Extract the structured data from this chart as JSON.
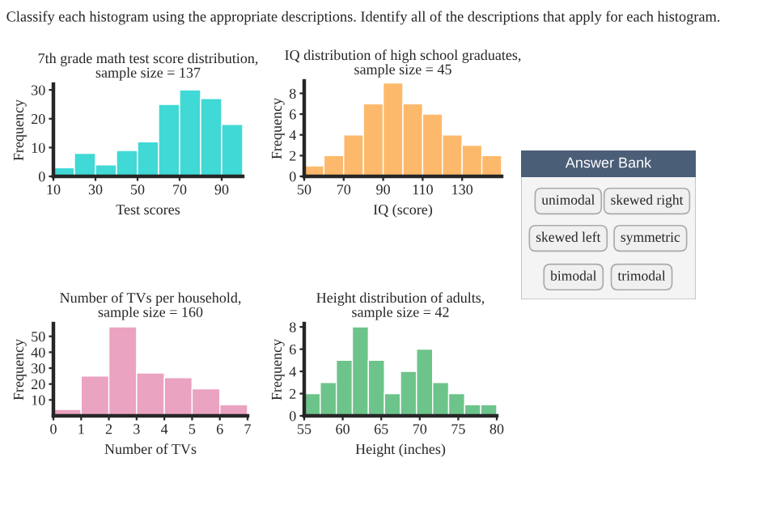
{
  "chart_data": [
    {
      "type": "other",
      "title": "Classify each histogram using the appropriate descriptions. Identify all of the descriptions that apply for each histogram."
    },
    {
      "type": "histogram",
      "title": "7th grade math test score distribution,\nsample size = 137",
      "xlabel": "Test scores",
      "ylabel": "Frequency",
      "color": "#40d9d5",
      "bins": [
        10,
        20,
        30,
        40,
        50,
        60,
        70,
        80,
        90,
        100
      ],
      "values": [
        3,
        8,
        4,
        9,
        12,
        25,
        30,
        27,
        18
      ],
      "xlim": [
        10,
        100
      ],
      "ylim": [
        0,
        32
      ],
      "xticks": [
        10,
        30,
        50,
        70,
        90
      ],
      "yticks": [
        0,
        10,
        20,
        30
      ]
    },
    {
      "type": "histogram",
      "title": "IQ distribution of high school graduates,\nsample size = 45",
      "xlabel": "IQ (score)",
      "ylabel": "Frequency",
      "color": "#fdb96b",
      "bins": [
        50,
        60,
        70,
        80,
        90,
        100,
        110,
        120,
        130,
        140,
        150
      ],
      "values": [
        1,
        2,
        4,
        7,
        9,
        7,
        6,
        4,
        3,
        2
      ],
      "xlim": [
        50,
        150
      ],
      "ylim": [
        0,
        9.2
      ],
      "xticks": [
        50,
        70,
        90,
        110,
        130
      ],
      "yticks": [
        0,
        2,
        4,
        6,
        8
      ]
    },
    {
      "type": "histogram",
      "title": "Number of TVs per household,\nsample size = 160",
      "xlabel": "Number of TVs",
      "ylabel": "Frequency",
      "color": "#eaa3c0",
      "bins": [
        0,
        1,
        2,
        3,
        4,
        5,
        6,
        7
      ],
      "values": [
        4,
        25,
        56,
        27,
        24,
        17,
        7
      ],
      "xlim": [
        0,
        7
      ],
      "ylim": [
        0,
        58
      ],
      "xticks": [
        0,
        1,
        2,
        3,
        4,
        5,
        6,
        7
      ],
      "yticks": [
        10,
        20,
        30,
        40,
        50
      ]
    },
    {
      "type": "histogram",
      "title": "Height distribution of adults,\nsample size = 42",
      "xlabel": "Height (inches)",
      "ylabel": "Frequency",
      "color": "#6dc48b",
      "bins": [
        55,
        57.08,
        59.17,
        61.25,
        63.33,
        65.42,
        67.5,
        69.58,
        71.67,
        73.75,
        75.83,
        77.92,
        80
      ],
      "values": [
        2,
        3,
        5,
        8,
        5,
        2,
        4,
        6,
        3,
        2,
        1,
        1
      ],
      "xlim": [
        55,
        80
      ],
      "ylim": [
        0,
        8.3
      ],
      "xticks": [
        55,
        60,
        65,
        70,
        75,
        80
      ],
      "yticks": [
        0,
        2,
        4,
        6,
        8
      ]
    },
    {
      "type": "other",
      "title": "Answer Bank",
      "annotations": [
        "unimodal",
        "skewed right",
        "skewed left",
        "symmetric",
        "bimodal",
        "trimodal"
      ]
    }
  ]
}
